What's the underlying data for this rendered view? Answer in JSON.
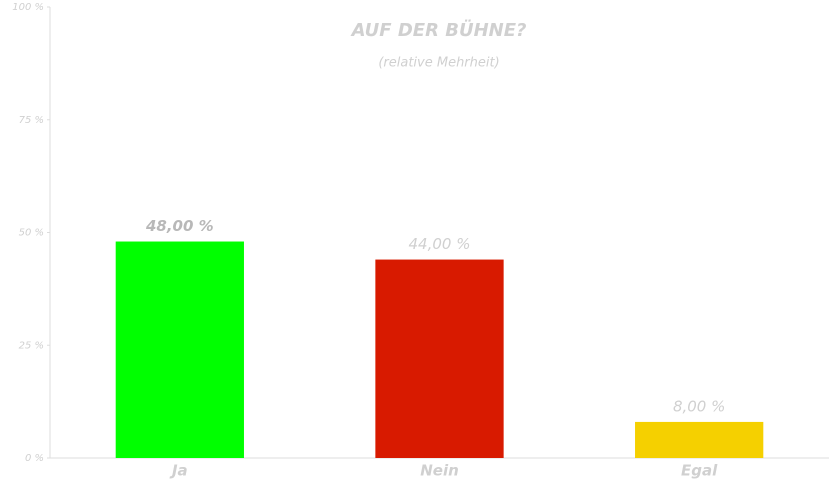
{
  "chart_data": {
    "type": "bar",
    "title": "AUF DER BÜHNE?",
    "subtitle": "(relative Mehrheit)",
    "categories": [
      "Ja",
      "Nein",
      "Egal"
    ],
    "values": [
      48,
      44,
      8
    ],
    "value_labels": [
      "48,00 %",
      "44,00 %",
      "8,00 %"
    ],
    "colors": [
      "#00ff00",
      "#d81a00",
      "#f5d000"
    ],
    "ylim": [
      0,
      100
    ],
    "yticks": [
      {
        "value": 0,
        "label": "0 %"
      },
      {
        "value": 25,
        "label": "25 %"
      },
      {
        "value": 50,
        "label": "50 %"
      },
      {
        "value": 75,
        "label": "75 %"
      },
      {
        "value": 100,
        "label": "100 %"
      }
    ],
    "grid": false
  }
}
